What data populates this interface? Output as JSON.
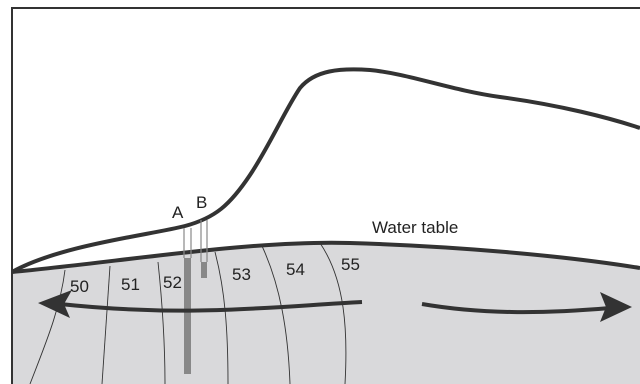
{
  "wells": [
    "A",
    "B"
  ],
  "water_table": "Water table",
  "contours": [
    50,
    51,
    52,
    53,
    54,
    55
  ]
}
